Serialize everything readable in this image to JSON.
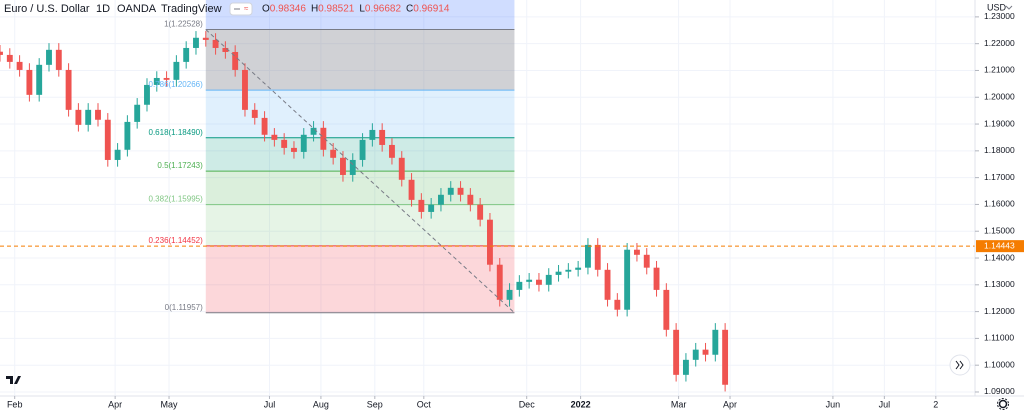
{
  "chart_data": {
    "type": "candlestick",
    "title": "Euro / U.S. Dollar",
    "interval": "1D",
    "exchange": "OANDA",
    "platform": "TradingView",
    "legend_ohlc": [
      {
        "label": "O",
        "value": 0.98346
      },
      {
        "label": "H",
        "value": 0.98521
      },
      {
        "label": "L",
        "value": 0.96682
      },
      {
        "label": "C",
        "value": 0.96914
      }
    ],
    "currency": "USD",
    "x": [
      0,
      4,
      8,
      12,
      16,
      20,
      24,
      28,
      32,
      36,
      40,
      44,
      48,
      52,
      56,
      60,
      64,
      68,
      72,
      76,
      80,
      84,
      88,
      92,
      96,
      100,
      104,
      108,
      112,
      116,
      120,
      124,
      128,
      132,
      136,
      140,
      144,
      148,
      152,
      156,
      160,
      164,
      168,
      172,
      176,
      180,
      184,
      188,
      192,
      196,
      200,
      204,
      208,
      212,
      216,
      220,
      224,
      228,
      232,
      236,
      240,
      244,
      248,
      252,
      256,
      260,
      264,
      268,
      272,
      276,
      280,
      284,
      288,
      292,
      296
    ],
    "open": [
      1.217,
      1.2158,
      1.2132,
      1.2102,
      1.2009,
      1.2121,
      1.2177,
      1.2102,
      1.1953,
      1.1897,
      1.1953,
      1.1916,
      1.1766,
      1.1804,
      1.1908,
      1.1972,
      1.2046,
      1.2072,
      1.2065,
      1.2132,
      1.2184,
      1.2222,
      1.2214,
      1.2184,
      1.2169,
      1.2102,
      1.1953,
      1.1923,
      1.186,
      1.1841,
      1.1811,
      1.1796,
      1.186,
      1.1886,
      1.1804,
      1.1774,
      1.171,
      1.1766,
      1.1841,
      1.1878,
      1.1822,
      1.1774,
      1.1692,
      1.1617,
      1.1572,
      1.1599,
      1.1636,
      1.1662,
      1.1636,
      1.1599,
      1.1543,
      1.1375,
      1.1244,
      1.1281,
      1.1311,
      1.1319,
      1.13,
      1.1337,
      1.1349,
      1.1356,
      1.1364,
      1.1449,
      1.1356,
      1.1244,
      1.1207,
      1.1431,
      1.1412,
      1.1364,
      1.1281,
      1.1132,
      1.0964,
      1.102,
      1.1058,
      1.1039,
      1.1132
    ],
    "high": [
      1.2195,
      1.2183,
      1.2157,
      1.2127,
      1.2146,
      1.2202,
      1.2202,
      1.2127,
      1.1978,
      1.1978,
      1.1978,
      1.1941,
      1.1829,
      1.1933,
      1.1997,
      1.2071,
      1.2097,
      1.2097,
      1.2157,
      1.2209,
      1.2247,
      1.2247,
      1.2239,
      1.2209,
      1.2194,
      1.2127,
      1.1978,
      1.1948,
      1.1885,
      1.1866,
      1.1836,
      1.1885,
      1.1911,
      1.1911,
      1.1829,
      1.1799,
      1.1791,
      1.1866,
      1.1903,
      1.1903,
      1.1847,
      1.1799,
      1.1717,
      1.1642,
      1.1624,
      1.1661,
      1.1687,
      1.1687,
      1.1661,
      1.1624,
      1.1568,
      1.14,
      1.1306,
      1.1336,
      1.1344,
      1.1344,
      1.1362,
      1.1374,
      1.1381,
      1.1389,
      1.1474,
      1.1474,
      1.1381,
      1.1269,
      1.1456,
      1.1456,
      1.1437,
      1.1389,
      1.1306,
      1.1157,
      1.1045,
      1.1083,
      1.1083,
      1.1157,
      1.1157
    ],
    "low": [
      1.2133,
      1.2107,
      1.2077,
      1.1984,
      1.1984,
      1.2096,
      1.2077,
      1.1928,
      1.1872,
      1.1872,
      1.1891,
      1.1741,
      1.1741,
      1.1779,
      1.1883,
      1.1947,
      1.2021,
      1.204,
      1.204,
      1.2107,
      1.2159,
      1.2189,
      1.2159,
      1.2144,
      1.2077,
      1.1928,
      1.1898,
      1.1835,
      1.1816,
      1.1786,
      1.1771,
      1.1771,
      1.1835,
      1.1779,
      1.1749,
      1.1685,
      1.1685,
      1.1741,
      1.1816,
      1.1797,
      1.1749,
      1.1667,
      1.1592,
      1.1547,
      1.1547,
      1.1574,
      1.1611,
      1.1611,
      1.1574,
      1.1518,
      1.135,
      1.1219,
      1.1219,
      1.1256,
      1.1286,
      1.1275,
      1.1275,
      1.1312,
      1.1324,
      1.1331,
      1.1339,
      1.1331,
      1.1219,
      1.1182,
      1.1182,
      1.1387,
      1.1339,
      1.1256,
      1.1107,
      1.0939,
      1.0939,
      1.0995,
      1.1014,
      1.1014,
      1.0902
    ],
    "close": [
      1.2158,
      1.2132,
      1.2102,
      1.2009,
      1.2121,
      1.2177,
      1.2102,
      1.1953,
      1.1897,
      1.1953,
      1.1916,
      1.1766,
      1.1804,
      1.1908,
      1.1972,
      1.2046,
      1.2072,
      1.2065,
      1.2132,
      1.2184,
      1.2222,
      1.2214,
      1.2184,
      1.2169,
      1.2102,
      1.1953,
      1.1923,
      1.186,
      1.1841,
      1.1811,
      1.1796,
      1.186,
      1.1886,
      1.1804,
      1.1774,
      1.171,
      1.1766,
      1.1841,
      1.1878,
      1.1822,
      1.1774,
      1.1692,
      1.1617,
      1.1572,
      1.1599,
      1.1636,
      1.1662,
      1.1636,
      1.1599,
      1.1543,
      1.1375,
      1.1244,
      1.1281,
      1.1311,
      1.1319,
      1.13,
      1.1337,
      1.1349,
      1.1356,
      1.1364,
      1.1449,
      1.1356,
      1.1244,
      1.1207,
      1.1431,
      1.1412,
      1.1364,
      1.1281,
      1.1132,
      1.0964,
      1.102,
      1.1058,
      1.1039,
      1.1132,
      1.0927
    ],
    "up_color": "#26a69a",
    "down_color": "#ef5350",
    "xlim": [
      0,
      398
    ],
    "xticks": [
      {
        "value": 6,
        "label": "Feb"
      },
      {
        "value": 47,
        "label": "Apr"
      },
      {
        "value": 69,
        "label": "May"
      },
      {
        "value": 110,
        "label": "Jul"
      },
      {
        "value": 131,
        "label": "Aug"
      },
      {
        "value": 153,
        "label": "Sep"
      },
      {
        "value": 173,
        "label": "Oct"
      },
      {
        "value": 215,
        "label": "Dec"
      },
      {
        "value": 237,
        "label": "2022"
      },
      {
        "value": 277,
        "label": "Mar"
      },
      {
        "value": 298,
        "label": "Apr"
      },
      {
        "value": 340,
        "label": "Jun"
      },
      {
        "value": 361,
        "label": "Jul"
      },
      {
        "value": 382,
        "label": "2"
      }
    ],
    "ylim": [
      1.0885,
      1.2363
    ],
    "yticks": [
      {
        "value": 1.09,
        "label": "1.09000"
      },
      {
        "value": 1.1,
        "label": "1.10000"
      },
      {
        "value": 1.11,
        "label": "1.11000"
      },
      {
        "value": 1.12,
        "label": "1.12000"
      },
      {
        "value": 1.13,
        "label": "1.13000"
      },
      {
        "value": 1.14,
        "label": "1.14000"
      },
      {
        "value": 1.15,
        "label": "1.15000"
      },
      {
        "value": 1.16,
        "label": "1.16000"
      },
      {
        "value": 1.17,
        "label": "1.17000"
      },
      {
        "value": 1.18,
        "label": "1.18000"
      },
      {
        "value": 1.19,
        "label": "1.19000"
      },
      {
        "value": 1.2,
        "label": "1.20000"
      },
      {
        "value": 1.21,
        "label": "1.21000"
      },
      {
        "value": 1.22,
        "label": "1.22000"
      },
      {
        "value": 1.23,
        "label": "1.23000"
      }
    ],
    "grid": true,
    "fibonacci": {
      "x_start": 84,
      "x_end": 210,
      "levels": [
        {
          "level": 1,
          "price": 1.22528,
          "label": "1(1.22528)",
          "color": "#787b86"
        },
        {
          "level": 0.786,
          "price": 1.20266,
          "label": "0.786(1.20266)",
          "color": "#64b5f6"
        },
        {
          "level": 0.618,
          "price": 1.1849,
          "label": "0.618(1.18490)",
          "color": "#089981"
        },
        {
          "level": 0.5,
          "price": 1.17243,
          "label": "0.5(1.17243)",
          "color": "#4caf50"
        },
        {
          "level": 0.382,
          "price": 1.15995,
          "label": "0.382(1.15995)",
          "color": "#81c784"
        },
        {
          "level": 0.236,
          "price": 1.14452,
          "label": "0.236(1.14452)",
          "color": "#f23645"
        },
        {
          "level": 0,
          "price": 1.11957,
          "label": "0(1.11957)",
          "color": "#787b86"
        }
      ]
    },
    "last_price": {
      "value": 1.14443,
      "label": "1.14443",
      "color": "#f57c00"
    }
  }
}
